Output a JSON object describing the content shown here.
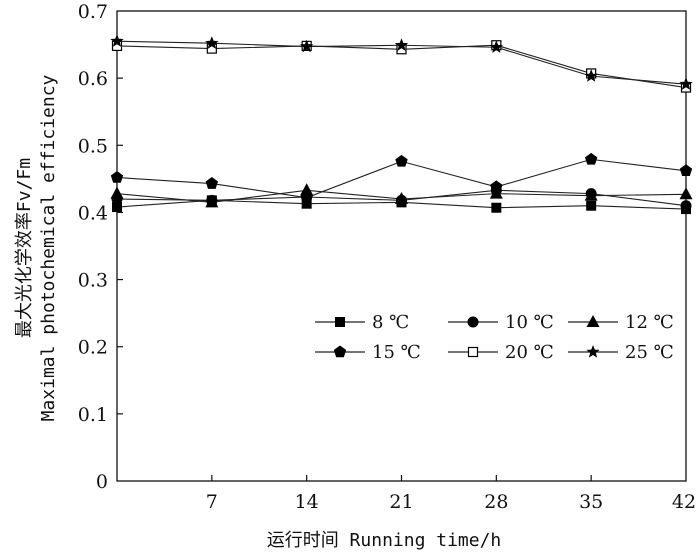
{
  "chart_data": {
    "type": "line",
    "title": "",
    "xlabel": "运行时间 Running time/h",
    "ylabel_line1": "最大光化学效率Fv/Fm",
    "ylabel_line2": "Maximal photochemical efficiency",
    "x": [
      0,
      7,
      14,
      21,
      28,
      35,
      42
    ],
    "xticks": [
      7,
      14,
      21,
      28,
      35,
      42
    ],
    "xlim": [
      0,
      42
    ],
    "ylim": [
      0,
      0.7
    ],
    "yticks": [
      0,
      0.1,
      0.2,
      0.3,
      0.4,
      0.5,
      0.6,
      0.7
    ],
    "ytick_labels": [
      "0",
      "0.1",
      "0.2",
      "0.3",
      "0.4",
      "0.5",
      "0.6",
      "0.7"
    ],
    "legend_position": "inside-lower-right",
    "series": [
      {
        "name": "8 ℃",
        "marker": "square-filled",
        "values": [
          0.408,
          0.418,
          0.413,
          0.415,
          0.407,
          0.41,
          0.405
        ]
      },
      {
        "name": "10 ℃",
        "marker": "circle-filled",
        "values": [
          0.42,
          0.418,
          0.423,
          0.418,
          0.433,
          0.428,
          0.41
        ]
      },
      {
        "name": "12 ℃",
        "marker": "triangle-filled",
        "values": [
          0.428,
          0.415,
          0.433,
          0.42,
          0.428,
          0.425,
          0.427
        ]
      },
      {
        "name": "15 ℃",
        "marker": "pentagon-filled",
        "values": [
          0.452,
          0.443,
          0.422,
          0.476,
          0.438,
          0.479,
          0.462
        ]
      },
      {
        "name": "20 ℃",
        "marker": "square-open",
        "values": [
          0.648,
          0.644,
          0.648,
          0.643,
          0.649,
          0.607,
          0.586
        ]
      },
      {
        "name": "25 ℃",
        "marker": "star-filled",
        "values": [
          0.655,
          0.652,
          0.647,
          0.649,
          0.646,
          0.603,
          0.591
        ]
      }
    ]
  }
}
